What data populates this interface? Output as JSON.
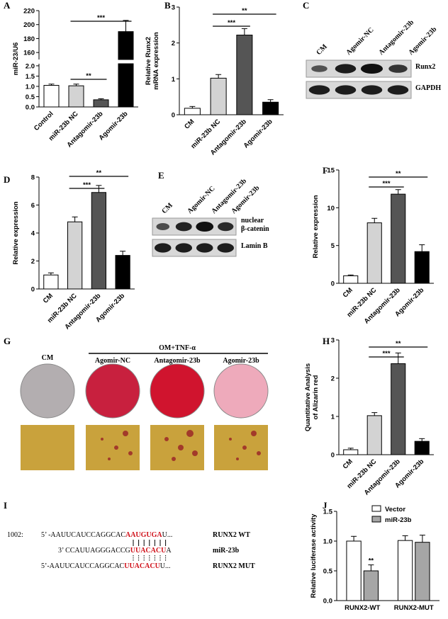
{
  "panel_letters": [
    "A",
    "B",
    "C",
    "D",
    "E",
    "F",
    "G",
    "H",
    "I",
    "J"
  ],
  "chart_data": [
    {
      "type": "bar",
      "ylabel": [
        "miR-23/U6"
      ],
      "categories": [
        "Control",
        "miR-23b NC",
        "Antagomir-23b",
        "Agomir-23b"
      ],
      "values": [
        1.05,
        1.03,
        0.35,
        190
      ],
      "errors": [
        0.06,
        0.08,
        0.05,
        16
      ],
      "colors": [
        "#ffffff",
        "#d3d3d3",
        "#555555",
        "#000000"
      ],
      "ylim": [
        0,
        220
      ],
      "ybreak": [
        2.1,
        150
      ],
      "yticks": [
        {
          "value": 0,
          "label": "0.0"
        },
        {
          "value": 0.5,
          "label": "0.5"
        },
        {
          "value": 1,
          "label": "1.0"
        },
        {
          "value": 1.5,
          "label": "1.5"
        },
        {
          "value": 2,
          "label": "2.0"
        },
        160,
        180,
        200,
        220
      ],
      "brackets": [
        {
          "from": 1,
          "to": 3,
          "label": "***"
        },
        {
          "from": 1,
          "to": 2,
          "label": "**"
        }
      ]
    },
    {
      "type": "bar",
      "ylabel": [
        "Relative Runx2",
        "mRNA expression"
      ],
      "categories": [
        "CM",
        "miR-23b NC",
        "Antagomir-23b",
        "Agomir-23b"
      ],
      "values": [
        0.18,
        1.02,
        2.22,
        0.35
      ],
      "errors": [
        0.05,
        0.1,
        0.18,
        0.07
      ],
      "colors": [
        "#ffffff",
        "#d3d3d3",
        "#555555",
        "#000000"
      ],
      "ylim": [
        0,
        3
      ],
      "yticks": [
        0,
        1,
        2,
        3
      ],
      "brackets": [
        {
          "from": 1,
          "to": 2,
          "label": "***"
        },
        {
          "from": 1,
          "to": 3,
          "label": "**"
        }
      ]
    },
    {
      "type": "bar",
      "ylabel": [
        "Relative expression"
      ],
      "categories": [
        "CM",
        "miR-23b NC",
        "Antagomir-23b",
        "Agomir-23b"
      ],
      "values": [
        1.0,
        4.8,
        6.9,
        2.4
      ],
      "errors": [
        0.15,
        0.35,
        0.5,
        0.3
      ],
      "colors": [
        "#ffffff",
        "#d3d3d3",
        "#555555",
        "#000000"
      ],
      "ylim": [
        0,
        8
      ],
      "yticks": [
        0,
        2,
        4,
        6,
        8
      ],
      "brackets": [
        {
          "from": 1,
          "to": 2,
          "label": "***"
        },
        {
          "from": 1,
          "to": 3,
          "label": "**"
        }
      ]
    },
    {
      "type": "bar",
      "ylabel": [
        "Relative expression"
      ],
      "categories": [
        "CM",
        "miR-23b NC",
        "Antagomir-23b",
        "Agomir-23b"
      ],
      "values": [
        1.0,
        8.0,
        11.8,
        4.2
      ],
      "errors": [
        0.1,
        0.6,
        0.6,
        0.9
      ],
      "colors": [
        "#ffffff",
        "#d3d3d3",
        "#555555",
        "#000000"
      ],
      "ylim": [
        0,
        15
      ],
      "yticks": [
        0,
        5,
        10,
        15
      ],
      "brackets": [
        {
          "from": 1,
          "to": 2,
          "label": "***"
        },
        {
          "from": 1,
          "to": 3,
          "label": "**"
        }
      ]
    },
    {
      "type": "bar",
      "ylabel": [
        "Quantitative Analysis",
        "of Alizarin red"
      ],
      "categories": [
        "CM",
        "miR-23b NC",
        "Antagomir-23b",
        "Agomir-23b"
      ],
      "values": [
        0.13,
        1.02,
        2.38,
        0.35
      ],
      "errors": [
        0.04,
        0.08,
        0.28,
        0.07
      ],
      "colors": [
        "#ffffff",
        "#d3d3d3",
        "#555555",
        "#000000"
      ],
      "ylim": [
        0,
        3
      ],
      "yticks": [
        0,
        1,
        2,
        3
      ],
      "brackets": [
        {
          "from": 1,
          "to": 2,
          "label": "***"
        },
        {
          "from": 1,
          "to": 3,
          "label": "**"
        }
      ]
    },
    {
      "type": "grouped-bar",
      "ylabel": [
        "Relative luciferase activity"
      ],
      "categories": [
        "RUNX2-WT",
        "RUNX2-MUT"
      ],
      "series": [
        {
          "name": "Vector",
          "color": "#ffffff",
          "values": [
            1.0,
            1.01
          ],
          "errors": [
            0.08,
            0.08
          ]
        },
        {
          "name": "miR-23b",
          "color": "#a6a6a6",
          "values": [
            0.5,
            0.98
          ],
          "errors": [
            0.1,
            0.12
          ]
        }
      ],
      "ylim": [
        0,
        1.5
      ],
      "yticks": [
        {
          "value": 0,
          "label": "0.0"
        },
        {
          "value": 0.5,
          "label": "0.5"
        },
        {
          "value": 1,
          "label": "1.0"
        },
        {
          "value": 1.5,
          "label": "1.5"
        }
      ],
      "annotations": [
        {
          "series": 1,
          "index": 0,
          "label": "**"
        }
      ]
    }
  ],
  "blots": [
    {
      "lanes": [
        "CM",
        "Agomir-NC",
        "Antagomir-23b",
        "Agomir-23b"
      ],
      "rows": [
        {
          "lines": [
            "Runx2"
          ]
        },
        {
          "lines": [
            "GAPDH"
          ]
        }
      ]
    },
    {
      "lanes": [
        "CM",
        "Agomir-NC",
        "Antagomir-23b",
        "Agomir-23b"
      ],
      "rows": [
        {
          "lines": [
            "nuclear",
            "β-catenin"
          ]
        },
        {
          "lines": [
            "Lamin B"
          ]
        }
      ]
    }
  ],
  "staining": {
    "control": "CM",
    "treatment": "OM+TNF-α",
    "groups": [
      "Agomir-NC",
      "Antagomir-23b",
      "Agomir-23b"
    ]
  },
  "sequences": {
    "position": "1002:",
    "rows": [
      {
        "parts": [
          "5’ -AAUUCAUCCAGGCAC",
          "AAUGUGA",
          "U..."
        ],
        "label": "RUNX2 WT"
      },
      {
        "parts": [
          "3’ CCAUUAGGGACCG",
          "UUACACU",
          "A"
        ],
        "label": "miR-23b"
      },
      {
        "parts": [
          "5’-AAUUCAUCCAGGCAC",
          "UUACACU",
          "U..."
        ],
        "label": "RUNX2 MUT"
      }
    ]
  }
}
